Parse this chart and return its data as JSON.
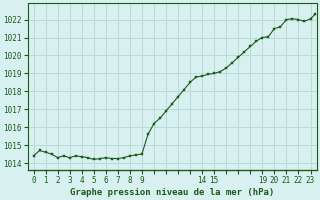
{
  "title": "Graphe pression niveau de la mer (hPa)",
  "bg_color": "#d8f0f0",
  "grid_color": "#b8dcd8",
  "line_color": "#1a5c1a",
  "marker_color": "#1a5c1a",
  "x_ticks_all": [
    0,
    1,
    2,
    3,
    4,
    5,
    6,
    7,
    8,
    9,
    10,
    11,
    12,
    13,
    14,
    15,
    16,
    17,
    18,
    19,
    20,
    21,
    22,
    23
  ],
  "x_tick_labels": [
    "0",
    "1",
    "2",
    "3",
    "4",
    "5",
    "6",
    "7",
    "8",
    "9",
    "",
    "",
    "",
    "",
    "14",
    "15",
    "",
    "",
    "",
    "19",
    "20",
    "21",
    "22",
    "23"
  ],
  "ylim": [
    1013.6,
    1022.9
  ],
  "xlim": [
    -0.5,
    23.5
  ],
  "y_ticks": [
    1014,
    1015,
    1016,
    1017,
    1018,
    1019,
    1020,
    1021,
    1022
  ],
  "data_x": [
    0,
    0.5,
    1,
    1.5,
    2,
    2.5,
    3,
    3.5,
    4,
    4.5,
    5,
    5.5,
    6,
    6.5,
    7,
    7.5,
    8,
    8.5,
    9,
    9.5,
    10,
    10.5,
    11,
    11.5,
    12,
    12.5,
    13,
    13.5,
    14,
    14.5,
    15,
    15.5,
    16,
    16.5,
    17,
    17.5,
    18,
    18.5,
    19,
    19.5,
    20,
    20.5,
    21,
    21.5,
    22,
    22.5,
    23,
    23.4
  ],
  "data_y": [
    1014.4,
    1014.7,
    1014.6,
    1014.5,
    1014.3,
    1014.4,
    1014.3,
    1014.4,
    1014.35,
    1014.3,
    1014.2,
    1014.25,
    1014.3,
    1014.25,
    1014.25,
    1014.3,
    1014.4,
    1014.45,
    1014.5,
    1015.6,
    1016.2,
    1016.5,
    1016.9,
    1017.3,
    1017.7,
    1018.1,
    1018.5,
    1018.8,
    1018.85,
    1018.95,
    1019.0,
    1019.1,
    1019.3,
    1019.6,
    1019.9,
    1020.2,
    1020.5,
    1020.8,
    1021.0,
    1021.05,
    1021.5,
    1021.6,
    1022.0,
    1022.05,
    1022.0,
    1021.9,
    1022.05,
    1022.3
  ],
  "figsize": [
    3.2,
    2.0
  ],
  "dpi": 100
}
